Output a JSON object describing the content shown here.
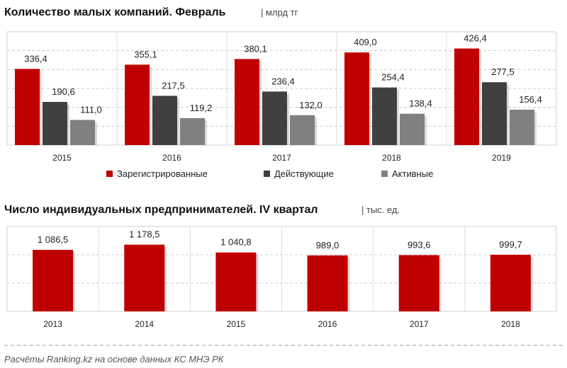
{
  "chart_data": [
    {
      "type": "bar",
      "title": "Количество малых компаний. Февраль",
      "unit": "| млрд тг",
      "categories": [
        "2015",
        "2016",
        "2017",
        "2018",
        "2019"
      ],
      "series": [
        {
          "name": "Зарегистрированные",
          "color": "#c00000",
          "values": [
            336.4,
            355.1,
            380.1,
            409.0,
            426.4
          ],
          "labels": [
            "336,4",
            "355,1",
            "380,1",
            "409,0",
            "426,4"
          ]
        },
        {
          "name": "Действующие",
          "color": "#404040",
          "values": [
            190.6,
            217.5,
            236.4,
            254.4,
            277.5
          ],
          "labels": [
            "190,6",
            "217,5",
            "236,4",
            "254,4",
            "277,5"
          ]
        },
        {
          "name": "Активные",
          "color": "#808080",
          "values": [
            111.0,
            119.2,
            132.0,
            138.4,
            156.4
          ],
          "labels": [
            "111,0",
            "119,2",
            "132,0",
            "138,4",
            "156,4"
          ]
        }
      ],
      "ylim": [
        0,
        500
      ],
      "legend": "bottom",
      "grid": true
    },
    {
      "type": "bar",
      "title": "Число индивидуальных предпринимателей. IV квартал",
      "unit": "| тыс. ед.",
      "categories": [
        "2013",
        "2014",
        "2015",
        "2016",
        "2017",
        "2018"
      ],
      "series": [
        {
          "color": "#c00000",
          "values": [
            1086.5,
            1178.5,
            1040.8,
            989.0,
            993.6,
            999.7
          ],
          "labels": [
            "1 086,5",
            "1 178,5",
            "1 040,8",
            "989,0",
            "993,6",
            "999,7"
          ]
        }
      ],
      "ylim": [
        0,
        1500
      ],
      "grid": true
    }
  ],
  "source": "Расчёты  Ranking.kz на основе данных КС МНЭ РК"
}
